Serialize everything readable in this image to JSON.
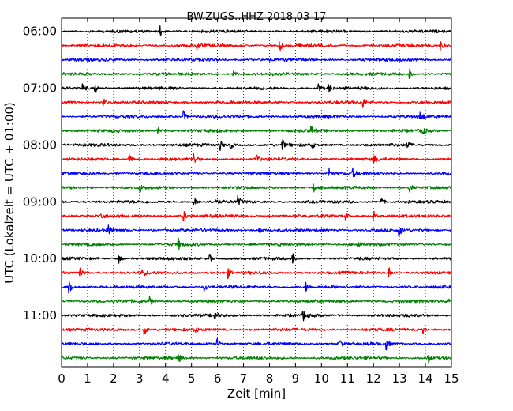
{
  "chart_data": {
    "type": "line",
    "title": "BW.ZUGS..HHZ 2018-03-17",
    "xlabel": "Zeit  [min]",
    "ylabel": "UTC (Lokalzeit = UTC + 01:00)",
    "xlim": [
      0,
      15
    ],
    "x_ticks": [
      0,
      1,
      2,
      3,
      4,
      5,
      6,
      7,
      8,
      9,
      10,
      11,
      12,
      13,
      14,
      15
    ],
    "x_tick_labels": [
      "0",
      "1",
      "2",
      "3",
      "4",
      "5",
      "6",
      "7",
      "8",
      "9",
      "10",
      "11",
      "12",
      "13",
      "14",
      "15"
    ],
    "y_tick_labels": [
      "06:00",
      "07:00",
      "08:00",
      "09:00",
      "10:00",
      "11:00"
    ],
    "y_tick_rows": [
      0,
      4,
      8,
      12,
      16,
      20
    ],
    "row_minutes": 15,
    "grid_vertical": true,
    "colors": [
      "#000000",
      "#ff0000",
      "#0000ff",
      "#008000"
    ],
    "rows": [
      {
        "start": "06:00",
        "color": "#000000",
        "events": [
          3.8
        ]
      },
      {
        "start": "06:15",
        "color": "#ff0000",
        "events": [
          5.2,
          8.4,
          14.6
        ]
      },
      {
        "start": "06:30",
        "color": "#0000ff",
        "events": []
      },
      {
        "start": "06:45",
        "color": "#008000",
        "events": [
          6.6,
          13.4
        ]
      },
      {
        "start": "07:00",
        "color": "#000000",
        "events": [
          0.8,
          1.3,
          9.9,
          10.3
        ]
      },
      {
        "start": "07:15",
        "color": "#ff0000",
        "events": [
          1.6,
          11.6
        ]
      },
      {
        "start": "07:30",
        "color": "#0000ff",
        "events": [
          4.7,
          13.8
        ]
      },
      {
        "start": "07:45",
        "color": "#008000",
        "events": [
          3.7,
          9.6,
          13.9
        ]
      },
      {
        "start": "08:00",
        "color": "#000000",
        "events": [
          6.1,
          6.5,
          8.5,
          9.6,
          13.3
        ]
      },
      {
        "start": "08:15",
        "color": "#ff0000",
        "events": [
          2.6,
          5.1,
          7.5,
          12.0
        ]
      },
      {
        "start": "08:30",
        "color": "#0000ff",
        "events": [
          10.3,
          11.2
        ]
      },
      {
        "start": "08:45",
        "color": "#008000",
        "events": [
          3.0,
          9.7,
          13.4
        ]
      },
      {
        "start": "09:00",
        "color": "#000000",
        "events": [
          5.1,
          5.9,
          6.8,
          12.3
        ]
      },
      {
        "start": "09:15",
        "color": "#ff0000",
        "events": [
          1.5,
          4.7,
          10.9,
          12.0
        ]
      },
      {
        "start": "09:30",
        "color": "#0000ff",
        "events": [
          1.8,
          7.6,
          13.0
        ]
      },
      {
        "start": "09:45",
        "color": "#008000",
        "events": [
          4.5,
          11.4
        ]
      },
      {
        "start": "10:00",
        "color": "#000000",
        "events": [
          2.2,
          5.7,
          8.9
        ]
      },
      {
        "start": "10:15",
        "color": "#ff0000",
        "events": [
          0.7,
          3.1,
          6.4,
          12.6
        ]
      },
      {
        "start": "10:30",
        "color": "#0000ff",
        "events": [
          0.3,
          5.5,
          9.4
        ]
      },
      {
        "start": "10:45",
        "color": "#008000",
        "events": [
          3.4,
          14.9
        ]
      },
      {
        "start": "11:00",
        "color": "#000000",
        "events": [
          5.9,
          9.3
        ]
      },
      {
        "start": "11:15",
        "color": "#ff0000",
        "events": [
          3.2,
          5.1,
          13.9
        ]
      },
      {
        "start": "11:30",
        "color": "#0000ff",
        "events": [
          6.0,
          10.7,
          12.5
        ]
      },
      {
        "start": "11:45",
        "color": "#008000",
        "events": [
          4.5,
          14.1
        ]
      }
    ]
  }
}
